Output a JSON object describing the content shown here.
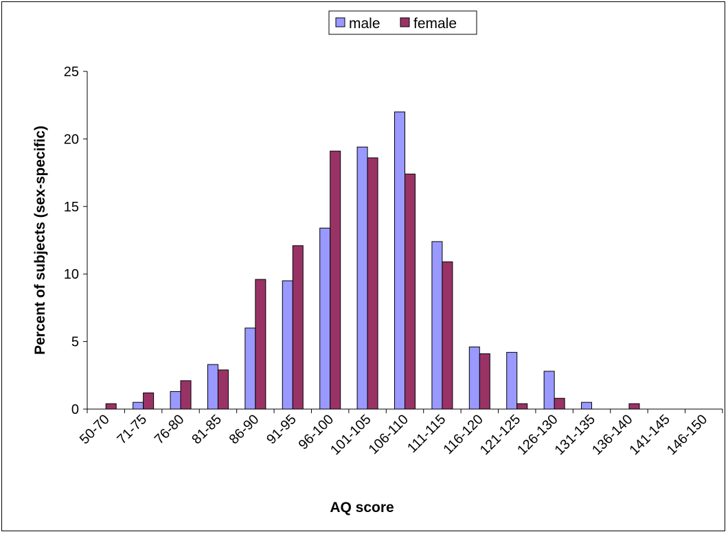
{
  "chart_data": {
    "type": "bar",
    "title": "",
    "xlabel": "AQ score",
    "ylabel": "Percent of subjects (sex-specific)",
    "ylim": [
      0,
      25
    ],
    "yticks": [
      0,
      5,
      10,
      15,
      20,
      25
    ],
    "grid": false,
    "legend_position": "top-center",
    "categories": [
      "50-70",
      "71-75",
      "76-80",
      "81-85",
      "86-90",
      "91-95",
      "96-100",
      "101-105",
      "106-110",
      "111-115",
      "116-120",
      "121-125",
      "126-130",
      "131-135",
      "136-140",
      "141-145",
      "146-150"
    ],
    "series": [
      {
        "name": "male",
        "color": "#9999ff",
        "values": [
          0,
          0.5,
          1.3,
          3.3,
          6.0,
          9.5,
          13.4,
          19.4,
          22.0,
          12.4,
          4.6,
          4.2,
          2.8,
          0.5,
          0,
          0,
          0
        ]
      },
      {
        "name": "female",
        "color": "#993366",
        "values": [
          0.4,
          1.2,
          2.1,
          2.9,
          9.6,
          12.1,
          19.1,
          18.6,
          17.4,
          10.9,
          4.1,
          0.4,
          0.8,
          0,
          0.4,
          0,
          0
        ]
      }
    ]
  }
}
